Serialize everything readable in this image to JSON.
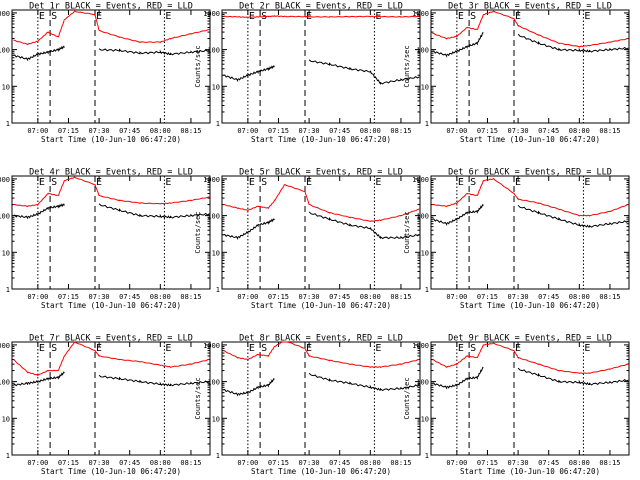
{
  "figure": {
    "panel_title_suffix": "BLACK = Events, RED = LLD",
    "xlabel": "Start Time (10-Jun-10 06:47:20)",
    "ylabel": "Counts/sec",
    "x_ticks": [
      "07:00",
      "07:15",
      "07:30",
      "07:45",
      "08:00",
      "08:15"
    ],
    "y_ticks": [
      "1",
      "10",
      "100",
      "1000"
    ],
    "markers": [
      {
        "letter": "E",
        "time": "07:00",
        "style": "dotted"
      },
      {
        "letter": "S",
        "time": "07:06",
        "style": "dashed"
      },
      {
        "letter": "E",
        "time": "07:28",
        "style": "dashed"
      },
      {
        "letter": "E",
        "time": "08:02",
        "style": "dotted"
      }
    ],
    "colors": {
      "events": "#000000",
      "lld": "#ff0000"
    }
  },
  "chart_data": [
    {
      "type": "line",
      "title": "Det 1r",
      "xlabel": "Start Time (10-Jun-10 06:47:20)",
      "ylabel": "Counts/sec",
      "yscale": "log",
      "ylim": [
        1,
        1200
      ],
      "x": [
        "06:48",
        "06:55",
        "07:00",
        "07:05",
        "07:10",
        "07:13",
        "07:18",
        "07:28",
        "07:30",
        "07:40",
        "07:50",
        "08:00",
        "08:05",
        "08:15",
        "08:24"
      ],
      "series": [
        {
          "name": "BLACK = Events",
          "values": [
            70,
            55,
            75,
            85,
            100,
            120,
            null,
            null,
            100,
            95,
            80,
            85,
            75,
            85,
            95
          ]
        },
        {
          "name": "RED = LLD",
          "values": [
            180,
            140,
            170,
            300,
            220,
            650,
            1100,
            900,
            330,
            220,
            160,
            160,
            200,
            270,
            350
          ]
        }
      ]
    },
    {
      "type": "line",
      "title": "Det 2r",
      "xlabel": "Start Time (10-Jun-10 06:47:20)",
      "ylabel": "Counts/sec",
      "yscale": "log",
      "ylim": [
        1,
        1200
      ],
      "x": [
        "06:48",
        "06:55",
        "07:00",
        "07:05",
        "07:10",
        "07:13",
        "07:18",
        "07:28",
        "07:30",
        "07:40",
        "07:50",
        "08:00",
        "08:05",
        "08:15",
        "08:24"
      ],
      "series": [
        {
          "name": "BLACK = Events",
          "values": [
            20,
            15,
            20,
            25,
            30,
            35,
            null,
            null,
            50,
            40,
            30,
            25,
            12,
            15,
            18
          ]
        },
        {
          "name": "RED = LLD",
          "values": [
            800,
            780,
            760,
            780,
            800,
            820,
            800,
            790,
            780,
            780,
            790,
            800,
            790,
            780,
            800
          ]
        }
      ]
    },
    {
      "type": "line",
      "title": "Det 3r",
      "xlabel": "Start Time (10-Jun-10 06:47:20)",
      "ylabel": "Counts/sec",
      "yscale": "log",
      "ylim": [
        1,
        1200
      ],
      "x": [
        "06:48",
        "06:55",
        "07:00",
        "07:05",
        "07:10",
        "07:13",
        "07:18",
        "07:28",
        "07:30",
        "07:40",
        "07:50",
        "08:00",
        "08:05",
        "08:15",
        "08:24"
      ],
      "series": [
        {
          "name": "BLACK = Events",
          "values": [
            90,
            70,
            90,
            120,
            150,
            300,
            null,
            null,
            250,
            150,
            100,
            95,
            90,
            100,
            110
          ]
        },
        {
          "name": "RED = LLD",
          "values": [
            280,
            200,
            230,
            400,
            350,
            900,
            1100,
            700,
            450,
            250,
            150,
            120,
            130,
            160,
            200
          ]
        }
      ]
    },
    {
      "type": "line",
      "title": "Det 4r",
      "xlabel": "Start Time (10-Jun-10 06:47:20)",
      "ylabel": "Counts/sec",
      "yscale": "log",
      "ylim": [
        1,
        1200
      ],
      "x": [
        "06:48",
        "06:55",
        "07:00",
        "07:05",
        "07:10",
        "07:13",
        "07:18",
        "07:28",
        "07:30",
        "07:40",
        "07:50",
        "08:00",
        "08:05",
        "08:15",
        "08:24"
      ],
      "series": [
        {
          "name": "BLACK = Events",
          "values": [
            100,
            90,
            110,
            160,
            180,
            200,
            null,
            null,
            200,
            140,
            100,
            95,
            90,
            100,
            110
          ]
        },
        {
          "name": "RED = LLD",
          "values": [
            200,
            180,
            200,
            400,
            350,
            900,
            1100,
            700,
            350,
            260,
            220,
            210,
            220,
            260,
            320
          ]
        }
      ]
    },
    {
      "type": "line",
      "title": "Det 5r",
      "xlabel": "Start Time (10-Jun-10 06:47:20)",
      "ylabel": "Counts/sec",
      "yscale": "log",
      "ylim": [
        1,
        1200
      ],
      "x": [
        "06:48",
        "06:55",
        "07:00",
        "07:05",
        "07:10",
        "07:13",
        "07:18",
        "07:28",
        "07:30",
        "07:40",
        "07:50",
        "08:00",
        "08:05",
        "08:15",
        "08:24"
      ],
      "series": [
        {
          "name": "BLACK = Events",
          "values": [
            30,
            25,
            35,
            55,
            65,
            80,
            null,
            null,
            120,
            80,
            55,
            45,
            25,
            25,
            30
          ]
        },
        {
          "name": "RED = LLD",
          "values": [
            200,
            160,
            140,
            180,
            160,
            250,
            700,
            450,
            200,
            120,
            90,
            70,
            75,
            100,
            150
          ]
        }
      ]
    },
    {
      "type": "line",
      "title": "Det 6r",
      "xlabel": "Start Time (10-Jun-10 06:47:20)",
      "ylabel": "Counts/sec",
      "yscale": "log",
      "ylim": [
        1,
        1200
      ],
      "x": [
        "06:48",
        "06:55",
        "07:00",
        "07:05",
        "07:10",
        "07:13",
        "07:18",
        "07:28",
        "07:30",
        "07:40",
        "07:50",
        "08:00",
        "08:05",
        "08:15",
        "08:24"
      ],
      "series": [
        {
          "name": "BLACK = Events",
          "values": [
            80,
            60,
            80,
            120,
            130,
            200,
            null,
            null,
            180,
            120,
            80,
            55,
            50,
            60,
            70
          ]
        },
        {
          "name": "RED = LLD",
          "values": [
            200,
            180,
            220,
            400,
            350,
            900,
            1000,
            400,
            280,
            220,
            150,
            100,
            100,
            130,
            200
          ]
        }
      ]
    },
    {
      "type": "line",
      "title": "Det 7r",
      "xlabel": "Start Time (10-Jun-10 06:47:20)",
      "ylabel": "Counts/sec",
      "yscale": "log",
      "ylim": [
        1,
        1200
      ],
      "x": [
        "06:48",
        "06:55",
        "07:00",
        "07:05",
        "07:10",
        "07:13",
        "07:18",
        "07:28",
        "07:30",
        "07:40",
        "07:50",
        "08:00",
        "08:05",
        "08:15",
        "08:24"
      ],
      "series": [
        {
          "name": "BLACK = Events",
          "values": [
            80,
            90,
            100,
            120,
            130,
            180,
            null,
            null,
            140,
            120,
            100,
            85,
            80,
            90,
            100
          ]
        },
        {
          "name": "RED = LLD",
          "values": [
            400,
            180,
            150,
            200,
            200,
            500,
            1200,
            700,
            500,
            400,
            350,
            280,
            250,
            300,
            400
          ]
        }
      ]
    },
    {
      "type": "line",
      "title": "Det 8r",
      "xlabel": "Start Time (10-Jun-10 06:47:20)",
      "ylabel": "Counts/sec",
      "yscale": "log",
      "ylim": [
        1,
        1200
      ],
      "x": [
        "06:48",
        "06:55",
        "07:00",
        "07:05",
        "07:10",
        "07:13",
        "07:18",
        "07:28",
        "07:30",
        "07:40",
        "07:50",
        "08:00",
        "08:05",
        "08:15",
        "08:24"
      ],
      "series": [
        {
          "name": "BLACK = Events",
          "values": [
            60,
            45,
            50,
            70,
            80,
            120,
            null,
            null,
            160,
            110,
            90,
            70,
            60,
            65,
            80
          ]
        },
        {
          "name": "RED = LLD",
          "values": [
            700,
            450,
            400,
            550,
            500,
            900,
            1300,
            800,
            500,
            380,
            300,
            250,
            250,
            300,
            400
          ]
        }
      ]
    },
    {
      "type": "line",
      "title": "Det 9r",
      "xlabel": "Start Time (10-Jun-10 06:47:20)",
      "ylabel": "Counts/sec",
      "yscale": "log",
      "ylim": [
        1,
        1200
      ],
      "x": [
        "06:48",
        "06:55",
        "07:00",
        "07:05",
        "07:10",
        "07:13",
        "07:18",
        "07:28",
        "07:30",
        "07:40",
        "07:50",
        "08:00",
        "08:05",
        "08:15",
        "08:24"
      ],
      "series": [
        {
          "name": "BLACK = Events",
          "values": [
            90,
            70,
            80,
            120,
            130,
            250,
            null,
            null,
            220,
            150,
            100,
            95,
            85,
            95,
            110
          ]
        },
        {
          "name": "RED = LLD",
          "values": [
            400,
            250,
            300,
            500,
            450,
            1000,
            1100,
            700,
            450,
            300,
            200,
            170,
            170,
            220,
            300
          ]
        }
      ]
    }
  ]
}
